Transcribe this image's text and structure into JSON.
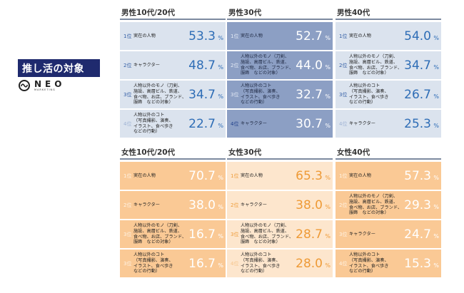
{
  "title": "推し活の対象",
  "logo": {
    "name": "NEO",
    "sub": "MARKETING"
  },
  "percent_sign": "%",
  "male": [
    {
      "header": "男性10代/20代",
      "rows": [
        {
          "rank": "1位",
          "label": "実在の人物",
          "value": "53.3"
        },
        {
          "rank": "2位",
          "label": "キャラクター",
          "value": "48.7"
        },
        {
          "rank": "3位",
          "label": "人物以外のモノ（刀剣、\n施設、高層ビル、鉄道、\n食べ物、お店、ブランド、\n服飾　などの対象）",
          "value": "34.7"
        },
        {
          "rank": "4位",
          "label": "人物以外のコト\n（写真撮影、演奏、\nイラスト、食べ歩き\nなどの行動）",
          "value": "22.7"
        }
      ]
    },
    {
      "header": "男性30代",
      "rows": [
        {
          "rank": "1位",
          "label": "実在の人物",
          "value": "52.7"
        },
        {
          "rank": "2位",
          "label": "人物以外のモノ（刀剣、\n施設、高層ビル、鉄道、\n食べ物、お店、ブランド、\n服飾　などの対象）",
          "value": "44.0"
        },
        {
          "rank": "3位",
          "label": "人物以外のコト\n（写真撮影、演奏、\nイラスト、食べ歩き\nなどの行動）",
          "value": "32.7"
        },
        {
          "rank": "4位",
          "label": "キャラクター",
          "value": "30.7"
        }
      ]
    },
    {
      "header": "男性40代",
      "rows": [
        {
          "rank": "1位",
          "label": "実在の人物",
          "value": "54.0"
        },
        {
          "rank": "2位",
          "label": "人物以外のモノ（刀剣、\n施設、高層ビル、鉄道、\n食べ物、お店、ブランド、\n服飾　などの対象）",
          "value": "34.7"
        },
        {
          "rank": "3位",
          "label": "人物以外のコト\n（写真撮影、演奏、\nイラスト、食べ歩き\nなどの行動）",
          "value": "26.7"
        },
        {
          "rank": "4位",
          "label": "キャラクター",
          "value": "25.3"
        }
      ]
    }
  ],
  "female": [
    {
      "header": "女性10代/20代",
      "rows": [
        {
          "rank": "1位",
          "label": "実在の人物",
          "value": "70.7"
        },
        {
          "rank": "2位",
          "label": "キャラクター",
          "value": "38.0"
        },
        {
          "rank": "3位",
          "label": "人物以外のモノ（刀剣、\n施設、高層ビル、鉄道、\n食べ物、お店、ブランド、\n服飾　などの対象）",
          "value": "16.7"
        },
        {
          "rank": "3位",
          "label": "人物以外のコト\n（写真撮影、演奏、\nイラスト、食べ歩き\nなどの行動）",
          "value": "16.7"
        }
      ]
    },
    {
      "header": "女性30代",
      "rows": [
        {
          "rank": "1位",
          "label": "実在の人物",
          "value": "65.3"
        },
        {
          "rank": "2位",
          "label": "キャラクター",
          "value": "38.0"
        },
        {
          "rank": "3位",
          "label": "人物以外のモノ（刀剣、\n施設、高層ビル、鉄道、\n食べ物、お店、ブランド、\n服飾　などの対象）",
          "value": "28.7"
        },
        {
          "rank": "4位",
          "label": "人物以外のコト\n（写真撮影、演奏、\nイラスト、食べ歩き\nなどの行動）",
          "value": "28.0"
        }
      ]
    },
    {
      "header": "女性40代",
      "rows": [
        {
          "rank": "1位",
          "label": "実在の人物",
          "value": "57.3"
        },
        {
          "rank": "2位",
          "label": "人物以外のモノ（刀剣、\n施設、高層ビル、鉄道、\n食べ物、お店、ブランド、\n服飾　などの対象）",
          "value": "29.3"
        },
        {
          "rank": "3位",
          "label": "キャラクター",
          "value": "24.7"
        },
        {
          "rank": "4位",
          "label": "人物以外のコト\n（写真撮影、演奏、\nイラスト、食べ歩き\nなどの行動）",
          "value": "15.3"
        }
      ]
    }
  ],
  "colors": {
    "title_bg": "#1f2a6e",
    "male_light": "#dbe3ee",
    "male_dark": "#8c9fc4",
    "male_value": "#2e6db6",
    "female_strong": "#fac995",
    "female_pale": "#fde6cd",
    "female_value": "#ee9a36"
  }
}
